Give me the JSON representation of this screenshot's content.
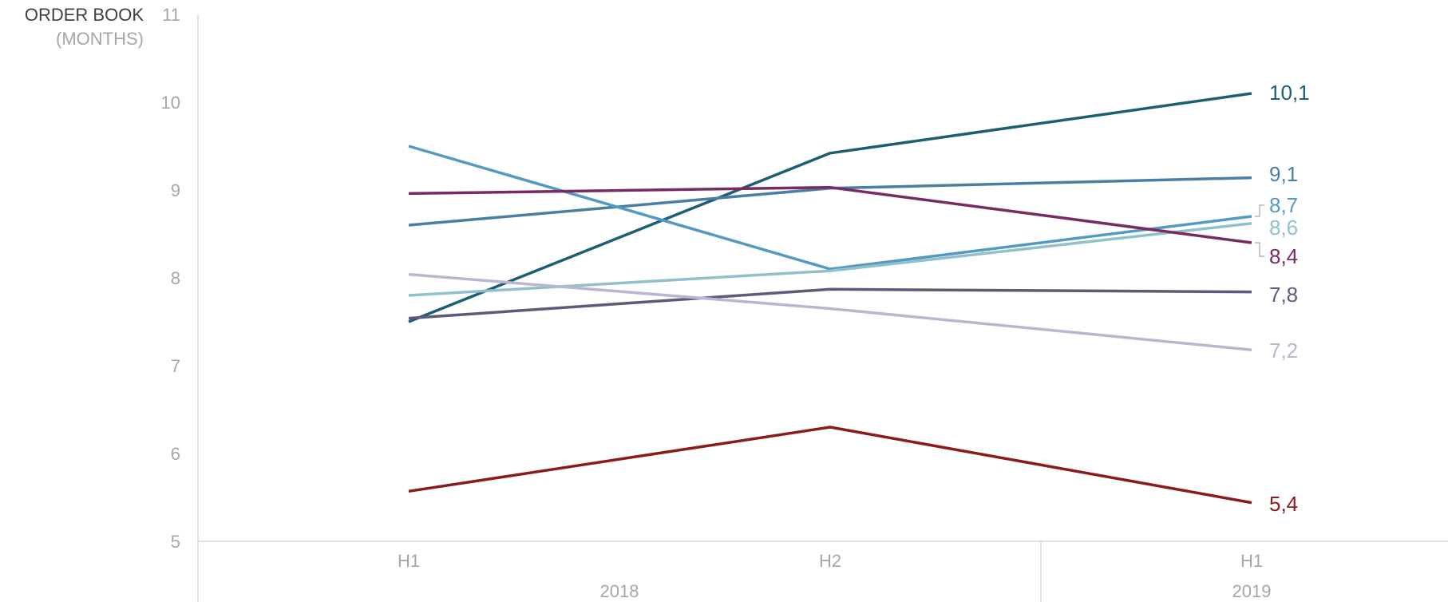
{
  "chart_data": {
    "type": "line",
    "ylabel": "ORDER BOOK",
    "ylabel_sub": "(MONTHS)",
    "ylim": [
      5,
      11
    ],
    "yticks": [
      "5",
      "6",
      "7",
      "8",
      "9",
      "10",
      "11"
    ],
    "x": [
      "H1",
      "H2",
      "H1"
    ],
    "x_groups": [
      {
        "label": "2018",
        "span": [
          0,
          1
        ]
      },
      {
        "label": "2019",
        "span": [
          2,
          2
        ]
      }
    ],
    "grid": false,
    "series": [
      {
        "values": [
          7.5,
          9.42,
          10.1
        ],
        "end_label": "10,1",
        "color": "#1a5e78"
      },
      {
        "values": [
          8.6,
          9.02,
          9.14
        ],
        "end_label": "9,1",
        "color": "#4a7fa3"
      },
      {
        "values": [
          9.5,
          8.1,
          8.7
        ],
        "end_label": "8,7",
        "color": "#5399c3"
      },
      {
        "values": [
          7.8,
          8.08,
          8.62
        ],
        "end_label": "8,6",
        "color": "#8fc0cb"
      },
      {
        "values": [
          8.96,
          9.03,
          8.4
        ],
        "end_label": "8,4",
        "color": "#7a2a62"
      },
      {
        "values": [
          7.54,
          7.87,
          7.84
        ],
        "end_label": "7,8",
        "color": "#5e5a7a"
      },
      {
        "values": [
          8.04,
          7.65,
          7.18
        ],
        "end_label": "7,2",
        "color": "#b9b6d2"
      },
      {
        "values": [
          5.57,
          6.3,
          5.44
        ],
        "end_label": "5,4",
        "color": "#8c1a1a"
      }
    ]
  }
}
